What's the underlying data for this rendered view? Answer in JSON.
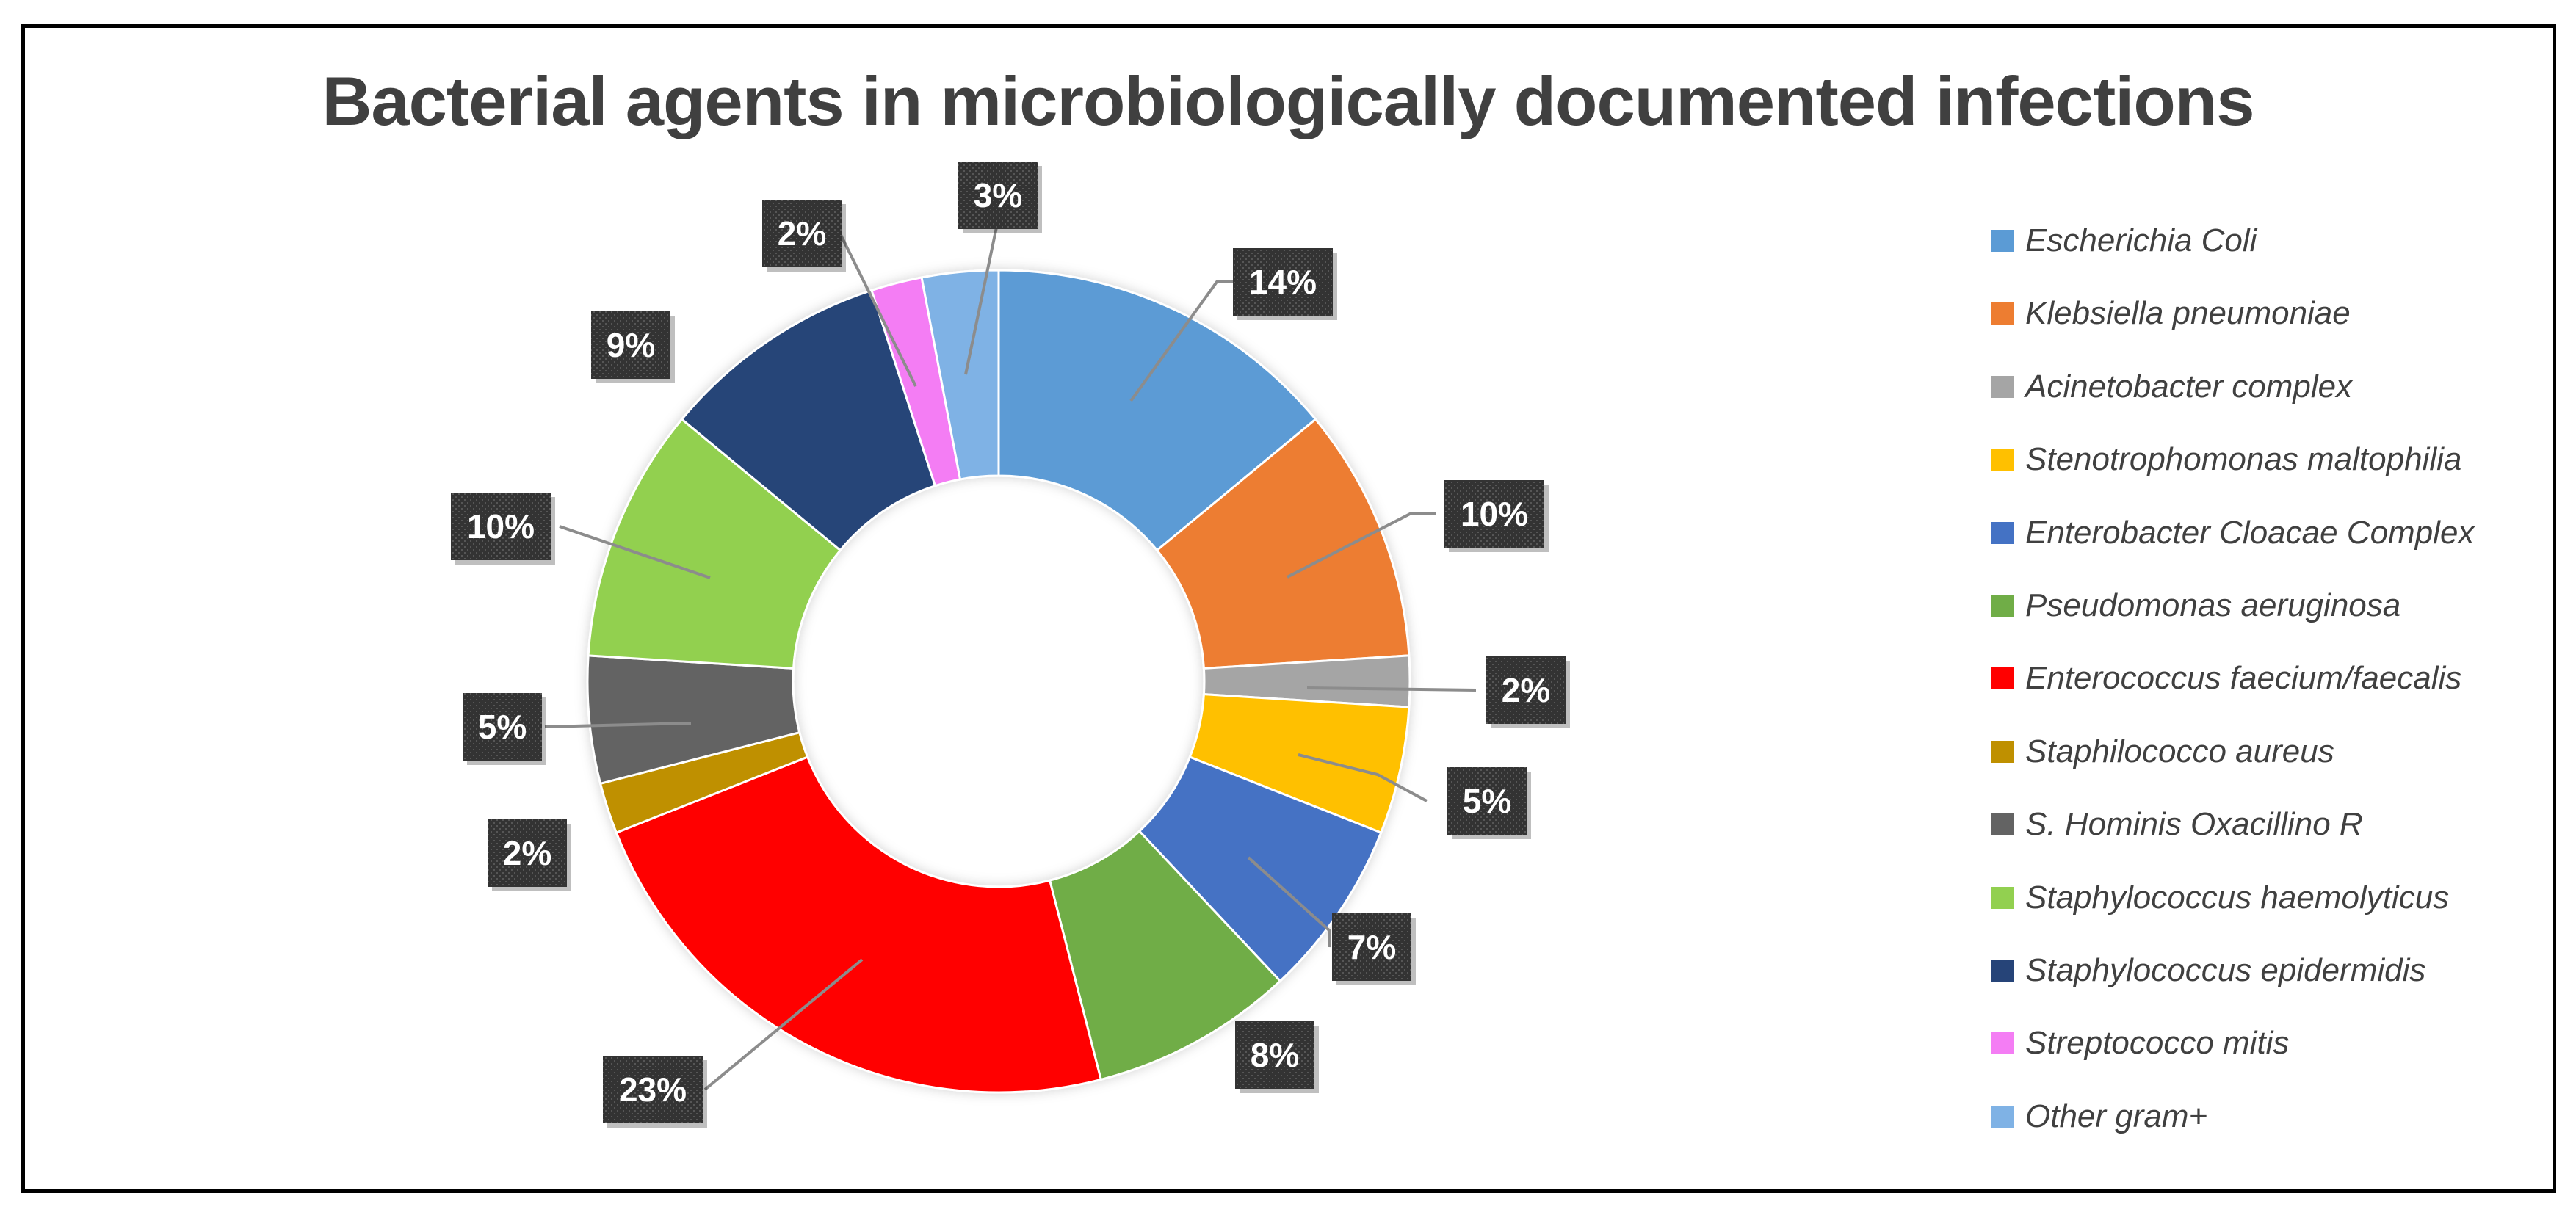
{
  "chart_data": {
    "type": "pie",
    "donut": true,
    "title": "Bacterial agents in microbiologically documented infections",
    "legend_position": "right",
    "data_label_style": "white bold text on dark patterned boxes with leader lines",
    "slices": [
      {
        "label": "Escherichia Coli",
        "value": 14,
        "display": "14%",
        "color": "#5B9BD5"
      },
      {
        "label": "Klebsiella pneumoniae",
        "value": 10,
        "display": "10%",
        "color": "#ED7D31"
      },
      {
        "label": "Acinetobacter complex",
        "value": 2,
        "display": "2%",
        "color": "#A5A5A5"
      },
      {
        "label": "Stenotrophomonas maltophilia",
        "value": 5,
        "display": "5%",
        "color": "#FFC000"
      },
      {
        "label": "Enterobacter Cloacae Complex",
        "value": 7,
        "display": "7%",
        "color": "#4472C4"
      },
      {
        "label": "Pseudomonas aeruginosa",
        "value": 8,
        "display": "8%",
        "color": "#70AD47"
      },
      {
        "label": "Enterococcus faecium/faecalis",
        "value": 23,
        "display": "23%",
        "color": "#FF0000"
      },
      {
        "label": "Staphilococco aureus",
        "value": 2,
        "display": "2%",
        "color": "#BF9000"
      },
      {
        "label": "S. Hominis Oxacillino R",
        "value": 5,
        "display": "5%",
        "color": "#636363"
      },
      {
        "label": "Staphylococcus haemolyticus",
        "value": 10,
        "display": "10%",
        "color": "#92D050"
      },
      {
        "label": " Staphylococcus epidermidis",
        "value": 9,
        "display": "9%",
        "color": "#264478"
      },
      {
        "label": "Streptococco mitis",
        "value": 2,
        "display": "2%",
        "color": "#F47DF4"
      },
      {
        "label": "Other gram+",
        "value": 3,
        "display": "3%",
        "color": "#7FB2E5"
      }
    ]
  }
}
